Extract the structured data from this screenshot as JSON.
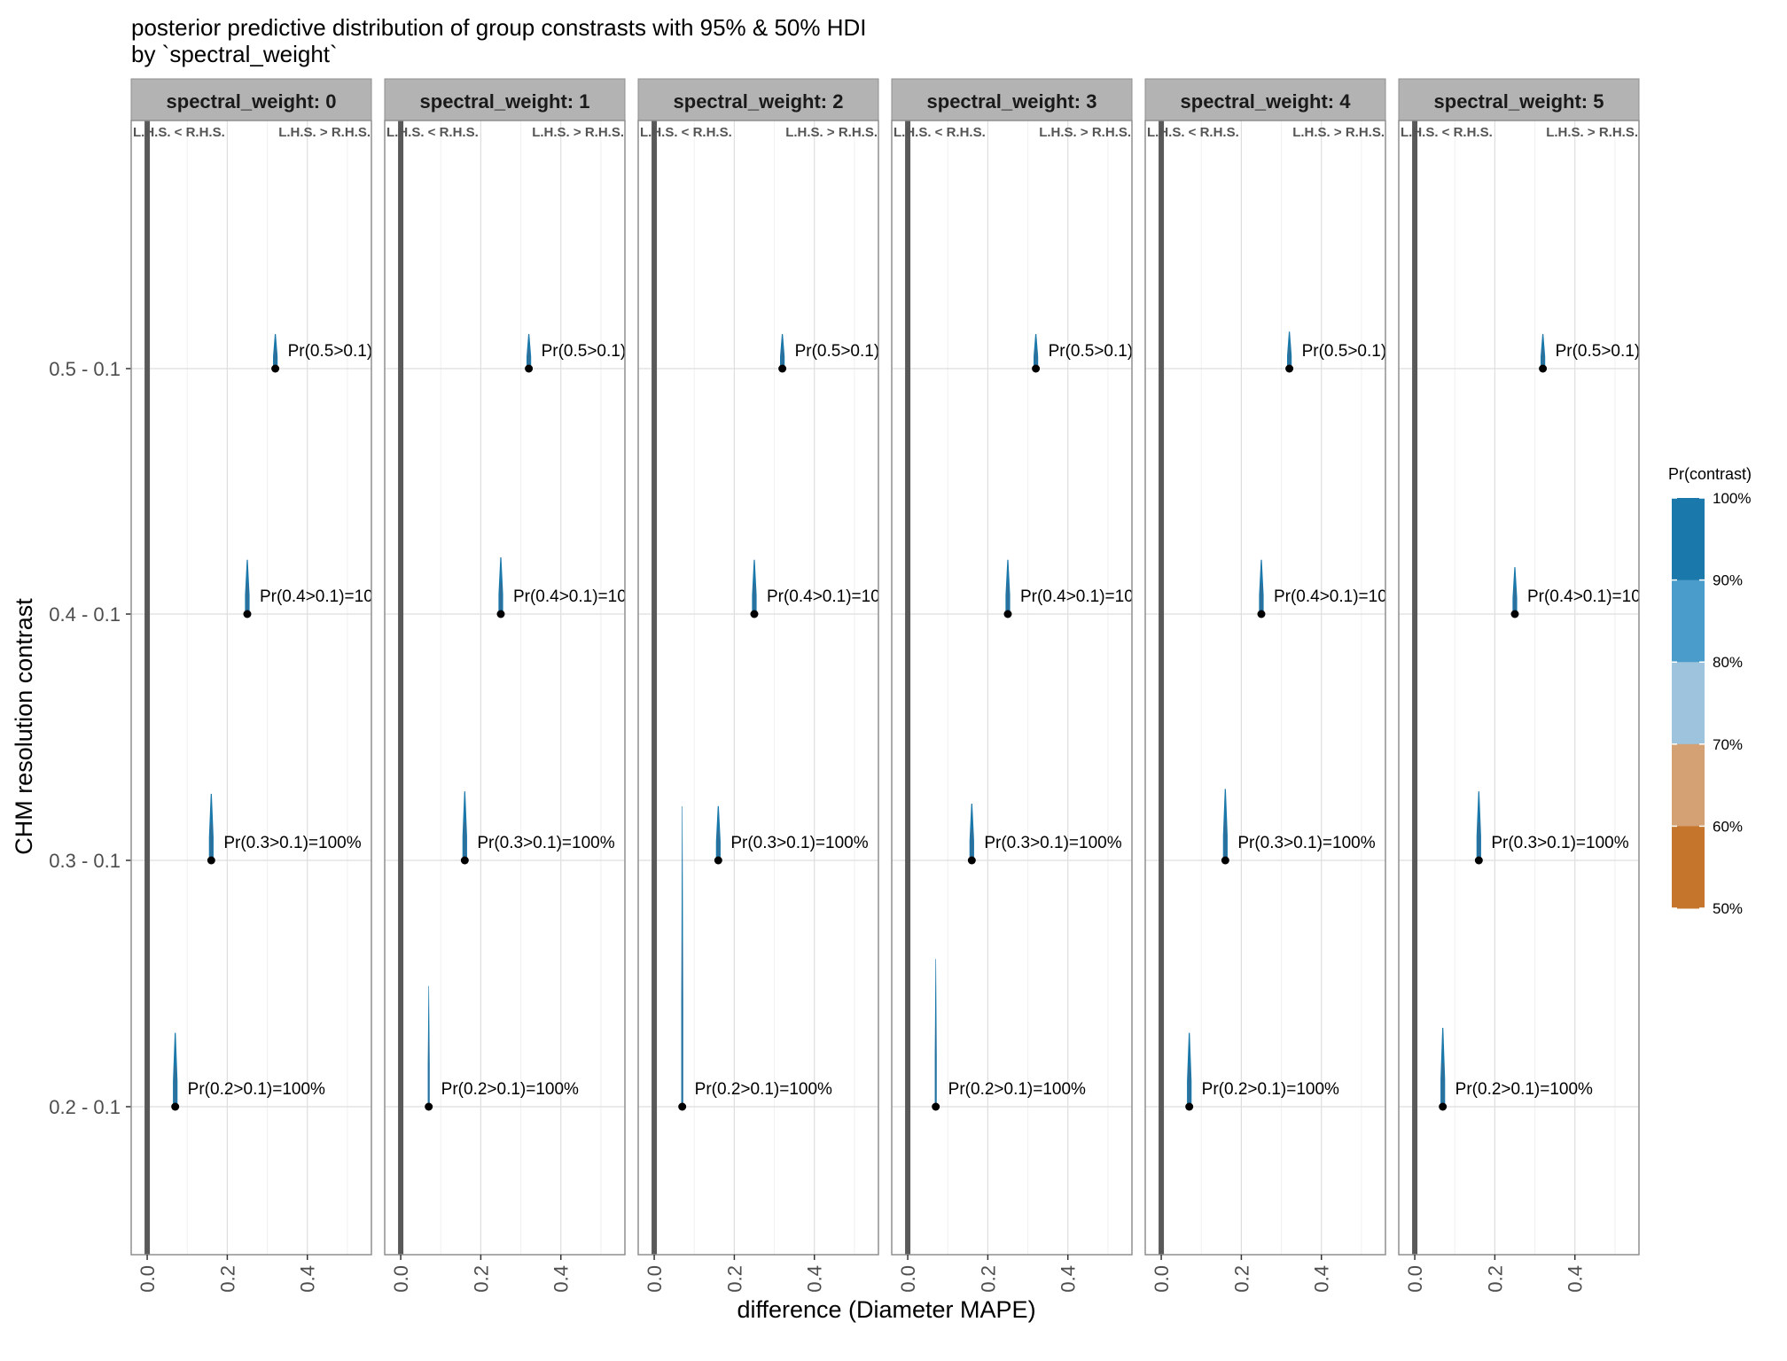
{
  "chart_data": {
    "type": "ridgeline",
    "title": "posterior predictive distribution of group constrasts with 95% & 50% HDI",
    "subtitle": "by `spectral_weight`",
    "xlabel": "difference (Diameter MAPE)",
    "ylabel": "CHM resolution contrast",
    "xlim": [
      -0.04,
      0.56
    ],
    "x_ticks": [
      0.0,
      0.2,
      0.4
    ],
    "x_tick_labels": [
      "0.0",
      "0.2",
      "0.4"
    ],
    "reference_line_x": 0,
    "region_labels": {
      "left": "L.H.S. < R.H.S.",
      "right": "L.H.S. > R.H.S."
    },
    "categories": [
      "0.2 - 0.1",
      "0.3 - 0.1",
      "0.4 - 0.1",
      "0.5 - 0.1"
    ],
    "legend": {
      "title": "Pr(contrast)",
      "position": "right",
      "breaks": [
        "100%",
        "90%",
        "80%",
        "70%",
        "60%",
        "50%"
      ],
      "colors": [
        "#1b78ab",
        "#4a9ccb",
        "#9ec3dd",
        "#d3a174",
        "#c6752c"
      ]
    },
    "panels": [
      {
        "label": "spectral_weight: 0",
        "points": [
          {
            "contrast": "0.2 - 0.1",
            "median": 0.07,
            "peak_offset": 0.3,
            "prob_label": "Pr(0.2>0.1)=100%"
          },
          {
            "contrast": "0.3 - 0.1",
            "median": 0.16,
            "peak_offset": 0.27,
            "prob_label": "Pr(0.3>0.1)=100%"
          },
          {
            "contrast": "0.4 - 0.1",
            "median": 0.25,
            "peak_offset": 0.22,
            "prob_label": "Pr(0.4>0.1)=10"
          },
          {
            "contrast": "0.5 - 0.1",
            "median": 0.32,
            "peak_offset": 0.14,
            "prob_label": "Pr(0.5>0.1)"
          }
        ]
      },
      {
        "label": "spectral_weight: 1",
        "points": [
          {
            "contrast": "0.2 - 0.1",
            "median": 0.07,
            "peak_offset": 0.49,
            "prob_label": "Pr(0.2>0.1)=100%"
          },
          {
            "contrast": "0.3 - 0.1",
            "median": 0.16,
            "peak_offset": 0.28,
            "prob_label": "Pr(0.3>0.1)=100%"
          },
          {
            "contrast": "0.4 - 0.1",
            "median": 0.25,
            "peak_offset": 0.23,
            "prob_label": "Pr(0.4>0.1)=10"
          },
          {
            "contrast": "0.5 - 0.1",
            "median": 0.32,
            "peak_offset": 0.14,
            "prob_label": "Pr(0.5>0.1)"
          }
        ]
      },
      {
        "label": "spectral_weight: 2",
        "points": [
          {
            "contrast": "0.2 - 0.1",
            "median": 0.07,
            "peak_offset": 1.22,
            "prob_label": "Pr(0.2>0.1)=100%"
          },
          {
            "contrast": "0.3 - 0.1",
            "median": 0.16,
            "peak_offset": 0.22,
            "prob_label": "Pr(0.3>0.1)=100%"
          },
          {
            "contrast": "0.4 - 0.1",
            "median": 0.25,
            "peak_offset": 0.22,
            "prob_label": "Pr(0.4>0.1)=10"
          },
          {
            "contrast": "0.5 - 0.1",
            "median": 0.32,
            "peak_offset": 0.14,
            "prob_label": "Pr(0.5>0.1)"
          }
        ]
      },
      {
        "label": "spectral_weight: 3",
        "points": [
          {
            "contrast": "0.2 - 0.1",
            "median": 0.07,
            "peak_offset": 0.6,
            "prob_label": "Pr(0.2>0.1)=100%"
          },
          {
            "contrast": "0.3 - 0.1",
            "median": 0.16,
            "peak_offset": 0.23,
            "prob_label": "Pr(0.3>0.1)=100%"
          },
          {
            "contrast": "0.4 - 0.1",
            "median": 0.25,
            "peak_offset": 0.22,
            "prob_label": "Pr(0.4>0.1)=10"
          },
          {
            "contrast": "0.5 - 0.1",
            "median": 0.32,
            "peak_offset": 0.14,
            "prob_label": "Pr(0.5>0.1)"
          }
        ]
      },
      {
        "label": "spectral_weight: 4",
        "points": [
          {
            "contrast": "0.2 - 0.1",
            "median": 0.07,
            "peak_offset": 0.3,
            "prob_label": "Pr(0.2>0.1)=100%"
          },
          {
            "contrast": "0.3 - 0.1",
            "median": 0.16,
            "peak_offset": 0.29,
            "prob_label": "Pr(0.3>0.1)=100%"
          },
          {
            "contrast": "0.4 - 0.1",
            "median": 0.25,
            "peak_offset": 0.22,
            "prob_label": "Pr(0.4>0.1)=10"
          },
          {
            "contrast": "0.5 - 0.1",
            "median": 0.32,
            "peak_offset": 0.15,
            "prob_label": "Pr(0.5>0.1)"
          }
        ]
      },
      {
        "label": "spectral_weight: 5",
        "points": [
          {
            "contrast": "0.2 - 0.1",
            "median": 0.07,
            "peak_offset": 0.32,
            "prob_label": "Pr(0.2>0.1)=100%"
          },
          {
            "contrast": "0.3 - 0.1",
            "median": 0.16,
            "peak_offset": 0.28,
            "prob_label": "Pr(0.3>0.1)=100%"
          },
          {
            "contrast": "0.4 - 0.1",
            "median": 0.25,
            "peak_offset": 0.19,
            "prob_label": "Pr(0.4>0.1)=10"
          },
          {
            "contrast": "0.5 - 0.1",
            "median": 0.32,
            "peak_offset": 0.14,
            "prob_label": "Pr(0.5>0.1)"
          }
        ]
      }
    ]
  }
}
